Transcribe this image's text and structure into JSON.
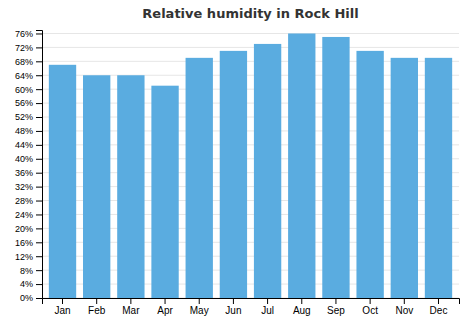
{
  "chart_data": {
    "type": "bar",
    "title": "Relative humidity in Rock Hill",
    "categories": [
      "Jan",
      "Feb",
      "Mar",
      "Apr",
      "May",
      "Jun",
      "Jul",
      "Aug",
      "Sep",
      "Oct",
      "Nov",
      "Dec"
    ],
    "values": [
      67,
      64,
      64,
      61,
      69,
      71,
      73,
      76,
      75,
      71,
      69,
      69
    ],
    "color": "#5aace0",
    "ylim": [
      0,
      77
    ],
    "yticks": [
      {
        "value": 0,
        "label": "0%"
      },
      {
        "value": 4,
        "label": "4%"
      },
      {
        "value": 8,
        "label": "8%"
      },
      {
        "value": 12,
        "label": "12%"
      },
      {
        "value": 16,
        "label": "16%"
      },
      {
        "value": 20,
        "label": "20%"
      },
      {
        "value": 24,
        "label": "24%"
      },
      {
        "value": 28,
        "label": "28%"
      },
      {
        "value": 32,
        "label": "32%"
      },
      {
        "value": 36,
        "label": "36%"
      },
      {
        "value": 40,
        "label": "40%"
      },
      {
        "value": 44,
        "label": "44%"
      },
      {
        "value": 48,
        "label": "48%"
      },
      {
        "value": 52,
        "label": "52%"
      },
      {
        "value": 56,
        "label": "56%"
      },
      {
        "value": 60,
        "label": "60%"
      },
      {
        "value": 64,
        "label": "64%"
      },
      {
        "value": 68,
        "label": "68%"
      },
      {
        "value": 72,
        "label": "72%"
      },
      {
        "value": 76,
        "label": "76%"
      }
    ],
    "grid": true
  }
}
